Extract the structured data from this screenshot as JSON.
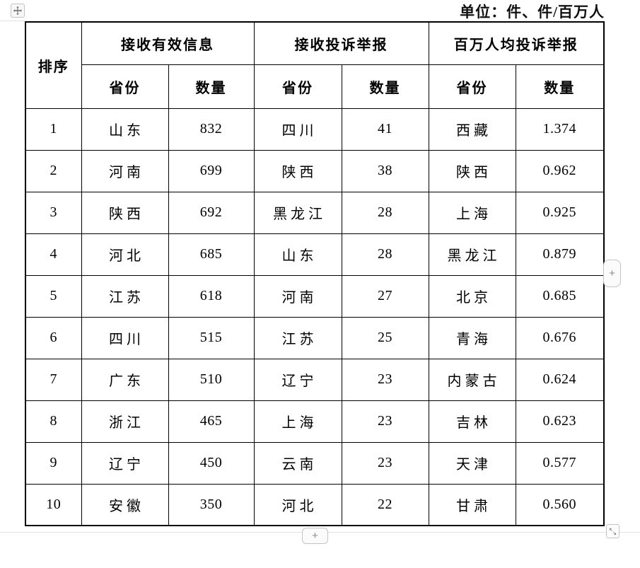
{
  "unit_label": "单位：件、件/百万人",
  "table": {
    "rank_header": "排序",
    "groups": [
      {
        "label": "接收有效信息",
        "sub": [
          "省份",
          "数量"
        ]
      },
      {
        "label": "接收投诉举报",
        "sub": [
          "省份",
          "数量"
        ]
      },
      {
        "label": "百万人均投诉举报",
        "sub": [
          "省份",
          "数量"
        ]
      }
    ],
    "rows": [
      [
        "1",
        "山东",
        "832",
        "四川",
        "41",
        "西藏",
        "1.374"
      ],
      [
        "2",
        "河南",
        "699",
        "陕西",
        "38",
        "陕西",
        "0.962"
      ],
      [
        "3",
        "陕西",
        "692",
        "黑龙江",
        "28",
        "上海",
        "0.925"
      ],
      [
        "4",
        "河北",
        "685",
        "山东",
        "28",
        "黑龙江",
        "0.879"
      ],
      [
        "5",
        "江苏",
        "618",
        "河南",
        "27",
        "北京",
        "0.685"
      ],
      [
        "6",
        "四川",
        "515",
        "江苏",
        "25",
        "青海",
        "0.676"
      ],
      [
        "7",
        "广东",
        "510",
        "辽宁",
        "23",
        "内蒙古",
        "0.624"
      ],
      [
        "8",
        "浙江",
        "465",
        "上海",
        "23",
        "吉林",
        "0.623"
      ],
      [
        "9",
        "辽宁",
        "450",
        "云南",
        "23",
        "天津",
        "0.577"
      ],
      [
        "10",
        "安徽",
        "350",
        "河北",
        "22",
        "甘肃",
        "0.560"
      ]
    ]
  },
  "controls": {
    "add_column_label": "+",
    "add_row_label": "+"
  },
  "icons": {
    "move_handle": "table-move-icon",
    "resize_handle": "table-resize-icon"
  },
  "colors": {
    "table_border": "#000000",
    "control_border": "#c3c3c3",
    "control_glyph": "#8a8a8a",
    "background": "#ffffff"
  }
}
